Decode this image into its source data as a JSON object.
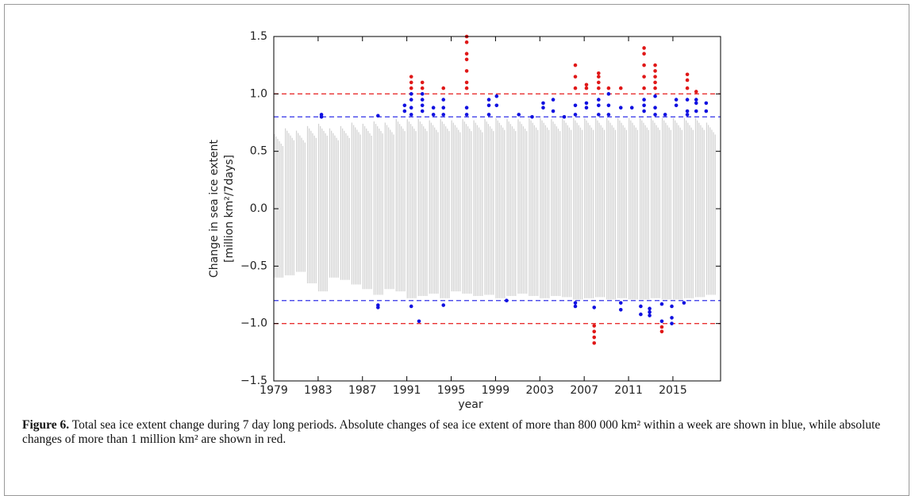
{
  "chart_data": {
    "type": "scatter",
    "x_label": "year",
    "y_label": [
      "Change in sea ice extent",
      "[million km²/7days]"
    ],
    "xlim": [
      1979,
      2019.3
    ],
    "xticks": [
      1979,
      1983,
      1987,
      1991,
      1995,
      1999,
      2003,
      2007,
      2011,
      2015
    ],
    "ylim": [
      -1.5,
      1.5
    ],
    "yticks": [
      {
        "value": -1.5,
        "label": "−1.5"
      },
      {
        "value": -1.0,
        "label": "−1.0"
      },
      {
        "value": -0.5,
        "label": "−0.5"
      },
      {
        "value": 0,
        "label": "0.0"
      },
      0.5,
      {
        "value": 1.0,
        "label": "1.0"
      },
      1.5
    ],
    "hlines": [
      {
        "value": 1.0,
        "color": "#e83030"
      },
      {
        "value": 0.8,
        "color": "#3030e8"
      },
      {
        "value": -0.8,
        "color": "#3030e8"
      },
      {
        "value": -1.0,
        "color": "#e83030"
      }
    ],
    "background": {
      "color": "#d3d3d3",
      "x": [
        1979,
        1980,
        1981,
        1982,
        1983,
        1984,
        1985,
        1986,
        1987,
        1988,
        1989,
        1990,
        1991,
        1992,
        1993,
        1994,
        1995,
        1996,
        1997,
        1998,
        1999,
        2000,
        2001,
        2002,
        2003,
        2004,
        2005,
        2006,
        2007,
        2008,
        2009,
        2010,
        2011,
        2012,
        2013,
        2014,
        2015,
        2016,
        2017,
        2018
      ],
      "low": [
        -0.6,
        -0.58,
        -0.55,
        -0.65,
        -0.72,
        -0.6,
        -0.62,
        -0.66,
        -0.7,
        -0.75,
        -0.7,
        -0.72,
        -0.78,
        -0.76,
        -0.74,
        -0.78,
        -0.72,
        -0.74,
        -0.76,
        -0.75,
        -0.78,
        -0.76,
        -0.74,
        -0.76,
        -0.78,
        -0.76,
        -0.77,
        -0.79,
        -0.78,
        -0.77,
        -0.79,
        -0.78,
        -0.79,
        -0.79,
        -0.78,
        -0.79,
        -0.79,
        -0.78,
        -0.77,
        -0.75
      ],
      "high": [
        0.65,
        0.7,
        0.68,
        0.72,
        0.74,
        0.7,
        0.72,
        0.75,
        0.74,
        0.76,
        0.75,
        0.78,
        0.78,
        0.78,
        0.77,
        0.78,
        0.77,
        0.78,
        0.77,
        0.78,
        0.79,
        0.78,
        0.78,
        0.79,
        0.79,
        0.78,
        0.79,
        0.79,
        0.79,
        0.79,
        0.79,
        0.79,
        0.79,
        0.79,
        0.79,
        0.79,
        0.79,
        0.79,
        0.79,
        0.75
      ]
    },
    "series": [
      {
        "color": "#1010e0",
        "x": [
          1983.3,
          1983.3,
          1988.4,
          1988.4,
          1988.4,
          1990.8,
          1990.8,
          1991.4,
          1991.4,
          1991.4,
          1991.4,
          1991.4,
          1992.1,
          1992.4,
          1992.4,
          1992.4,
          1992.4,
          1993.4,
          1993.4,
          1994.3,
          1994.3,
          1994.3,
          1994.3,
          1996.4,
          1996.4,
          1998.4,
          1998.4,
          1998.4,
          1999.1,
          1999.1,
          2000.0,
          2001.1,
          2002.3,
          2003.3,
          2003.3,
          2004.2,
          2004.2,
          2005.2,
          2006.2,
          2006.2,
          2006.2,
          2006.2,
          2007.2,
          2007.2,
          2007.9,
          2008.3,
          2008.3,
          2008.3,
          2009.2,
          2009.2,
          2009.2,
          2010.3,
          2010.3,
          2010.3,
          2011.3,
          2012.1,
          2012.1,
          2012.4,
          2012.4,
          2012.4,
          2012.9,
          2012.9,
          2012.9,
          2013.4,
          2013.4,
          2013.4,
          2014.0,
          2014.0,
          2014.3,
          2014.9,
          2014.9,
          2014.9,
          2015.3,
          2015.3,
          2016.0,
          2016.3,
          2016.3,
          2016.3,
          2017.1,
          2017.1,
          2017.1,
          2018.0,
          2018.0
        ],
        "values": [
          0.82,
          0.8,
          0.81,
          -0.84,
          -0.86,
          0.9,
          0.85,
          0.82,
          0.88,
          0.95,
          1.0,
          -0.85,
          -0.98,
          0.85,
          0.9,
          0.95,
          1.0,
          0.82,
          0.88,
          -0.84,
          0.82,
          0.88,
          0.95,
          0.82,
          0.88,
          0.82,
          0.9,
          0.95,
          0.98,
          0.9,
          -0.8,
          0.82,
          0.8,
          0.88,
          0.92,
          0.85,
          0.95,
          0.8,
          0.82,
          0.9,
          -0.82,
          -0.85,
          0.88,
          0.92,
          -0.86,
          0.82,
          0.9,
          0.95,
          0.82,
          0.9,
          1.0,
          0.88,
          -0.82,
          -0.88,
          0.88,
          -0.85,
          -0.92,
          0.85,
          0.9,
          0.95,
          -0.87,
          -0.9,
          -0.93,
          0.82,
          0.88,
          0.98,
          -0.83,
          -0.98,
          0.82,
          -0.85,
          -0.95,
          -1.0,
          0.9,
          0.95,
          -0.82,
          0.85,
          0.95,
          0.82,
          0.85,
          0.92,
          0.95,
          0.85,
          0.92
        ]
      },
      {
        "color": "#e01818",
        "x": [
          1991.4,
          1991.4,
          1991.4,
          1992.4,
          1992.4,
          1994.3,
          1996.4,
          1996.4,
          1996.4,
          1996.4,
          1996.4,
          1996.4,
          1996.4,
          2006.2,
          2006.2,
          2006.2,
          2007.2,
          2007.2,
          2007.9,
          2007.9,
          2007.9,
          2007.9,
          2008.3,
          2008.3,
          2008.3,
          2008.3,
          2009.2,
          2010.3,
          2012.4,
          2012.4,
          2012.4,
          2012.4,
          2012.4,
          2013.4,
          2013.4,
          2013.4,
          2013.4,
          2013.4,
          2014.0,
          2014.0,
          2016.3,
          2016.3,
          2016.3,
          2017.1
        ],
        "values": [
          1.05,
          1.1,
          1.15,
          1.05,
          1.1,
          1.05,
          1.05,
          1.1,
          1.2,
          1.3,
          1.35,
          1.45,
          1.5,
          1.05,
          1.15,
          1.25,
          1.05,
          1.08,
          -1.02,
          -1.07,
          -1.12,
          -1.17,
          1.05,
          1.1,
          1.15,
          1.18,
          1.05,
          1.05,
          1.05,
          1.15,
          1.25,
          1.35,
          1.4,
          1.05,
          1.1,
          1.15,
          1.2,
          1.25,
          -1.03,
          -1.07,
          1.05,
          1.12,
          1.17,
          1.02
        ]
      }
    ]
  },
  "caption": {
    "label": "Figure 6.",
    "text": "Total sea ice extent change during 7 day long periods. Absolute changes of sea ice extent of more than 800 000 km² within a week are shown in blue, while absolute changes of more than 1 million km² are shown in red."
  }
}
